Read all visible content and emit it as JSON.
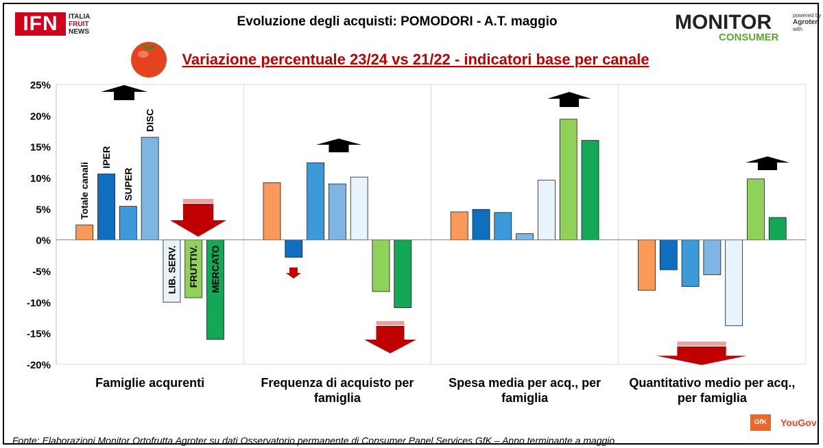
{
  "header": {
    "title": "Evoluzione degli acquisti: POMODORI - A.T. maggio",
    "subtitle": "Variazione percentuale 23/24 vs 21/22 - indicatori base per canale"
  },
  "logo_left": {
    "main": "IFN",
    "line1": "ITALIA",
    "line2": "FRUIT",
    "line3": "NEWS"
  },
  "logo_right": {
    "top": "MONITOR",
    "bottom": "CONSUMER",
    "powered": "powered by",
    "brand": "Agroter",
    "with": "with"
  },
  "footer": {
    "source": "Fonte: Elaborazioni Monitor Ortofrutta Agroter su dati Osservatorio permanente di Consumer Panel Services GfK  – Anno terminante a maggio",
    "gfk": "GfK",
    "yougov": "YouGov"
  },
  "colors": {
    "Totale canali": "#f79a5a",
    "IPER": "#0f6fbf",
    "SUPER": "#3d9ad8",
    "DISC": "#7fb5e2",
    "LIB. SERV.": "#e8f3fb",
    "FRUTTIV.": "#8fd15a",
    "MERCATO": "#12a855",
    "arrow_up": "#000000",
    "arrow_down": "#c00000"
  },
  "chart_data": {
    "type": "bar",
    "ylim": [
      -20,
      25
    ],
    "yticks": [
      "-20%",
      "-15%",
      "-10%",
      "-5%",
      "0%",
      "5%",
      "10%",
      "15%",
      "20%",
      "25%"
    ],
    "grid": false,
    "categories": [
      [
        "Famiglie acqurenti"
      ],
      [
        "Frequenza di acquisto per",
        "famiglia"
      ],
      [
        "Spesa media per acq., per",
        "famiglia"
      ],
      [
        "Quantitativo medio per acq.,",
        "per famiglia"
      ]
    ],
    "series_labels": [
      "Totale canali",
      "IPER",
      "SUPER",
      "DISC",
      "LIB. SERV.",
      "FRUTTIV.",
      "MERCATO"
    ],
    "series": [
      {
        "name": "Totale canali",
        "values": [
          2.4,
          9.2,
          4.5,
          -8.1
        ]
      },
      {
        "name": "IPER",
        "values": [
          10.6,
          -2.8,
          4.9,
          -4.8
        ]
      },
      {
        "name": "SUPER",
        "values": [
          5.4,
          12.4,
          4.4,
          -7.5
        ]
      },
      {
        "name": "DISC",
        "values": [
          16.5,
          9.0,
          1.0,
          -5.6
        ]
      },
      {
        "name": "LIB. SERV.",
        "values": [
          -10.0,
          10.1,
          9.6,
          -13.8
        ]
      },
      {
        "name": "FRUTTIV.",
        "values": [
          -9.3,
          -8.3,
          19.4,
          9.8
        ]
      },
      {
        "name": "MERCATO",
        "values": [
          -16.0,
          -10.9,
          16.0,
          3.6
        ]
      }
    ],
    "trend_arrows": [
      {
        "category": 0,
        "up": "large",
        "down": "large"
      },
      {
        "category": 1,
        "up": "medium",
        "down": "small/large"
      },
      {
        "category": 2,
        "up": "large",
        "down": "none"
      },
      {
        "category": 3,
        "up": "medium",
        "down": "large"
      }
    ]
  }
}
